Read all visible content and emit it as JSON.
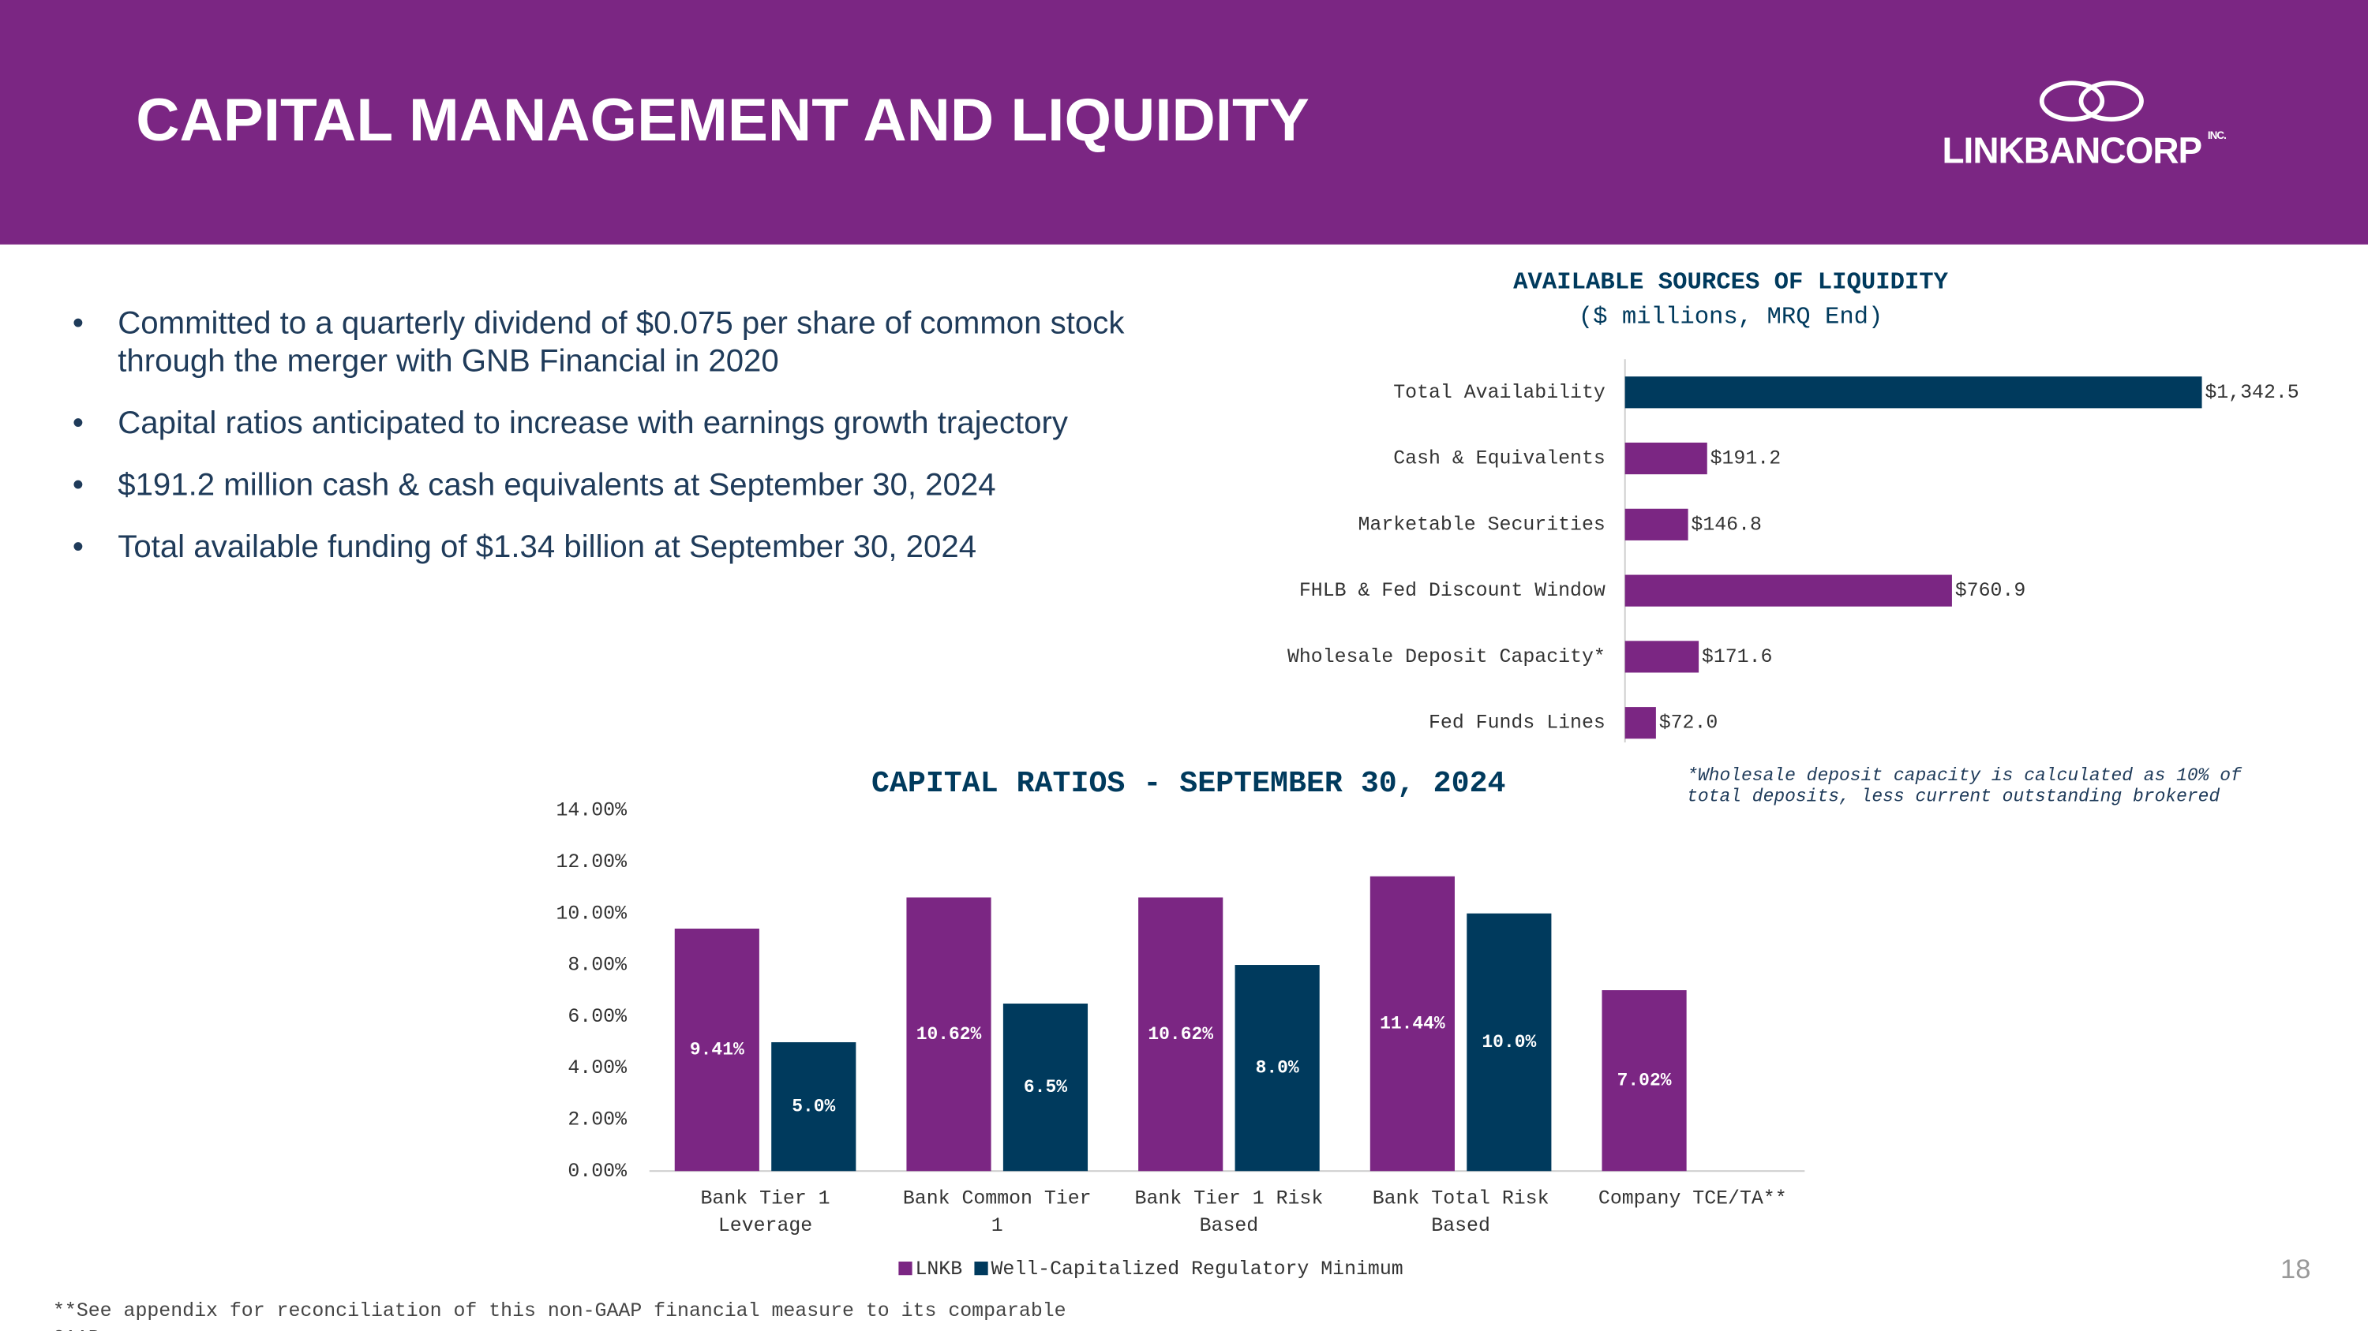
{
  "header": {
    "title": "CAPITAL MANAGEMENT AND LIQUIDITY",
    "logo": "LINKBANCORP",
    "logo_suffix": "INC."
  },
  "bullets": [
    "Committed to a quarterly dividend of $0.075 per share of common stock through the merger with GNB Financial in 2020",
    "Capital ratios anticipated to increase with earnings growth trajectory",
    "$191.2 million cash & cash equivalents at September 30, 2024",
    "Total available funding of $1.34 billion at September 30, 2024"
  ],
  "chart_data": [
    {
      "type": "hbar",
      "title": "AVAILABLE SOURCES OF LIQUIDITY",
      "subtitle": "($ millions, MRQ End)",
      "categories": [
        "Total Availability",
        "Cash & Equivalents",
        "Marketable Securities",
        "FHLB & Fed Discount Window",
        "Wholesale Deposit Capacity*",
        "Fed Funds Lines"
      ],
      "values": [
        1342.5,
        191.2,
        146.8,
        760.9,
        171.6,
        72.0
      ],
      "value_labels": [
        "$1,342.5",
        "$191.2",
        "$146.8",
        "$760.9",
        "$171.6",
        "$72.0"
      ],
      "colors": [
        "#003a5d",
        "#7b2683",
        "#7b2683",
        "#7b2683",
        "#7b2683",
        "#7b2683"
      ],
      "note": "*Wholesale deposit capacity is calculated as 10% of total deposits, less current outstanding brokered"
    },
    {
      "type": "bar",
      "title": "CAPITAL RATIOS - SEPTEMBER 30, 2024",
      "categories": [
        "Bank Tier 1 Leverage",
        "Bank Common Tier 1",
        "Bank Tier 1 Risk Based",
        "Bank Total Risk Based",
        "Company TCE/TA**"
      ],
      "series": [
        {
          "name": "LNKB",
          "color": "#7b2683",
          "values": [
            9.41,
            10.62,
            10.62,
            11.44,
            7.02
          ],
          "value_labels": [
            "9.41%",
            "10.62%",
            "10.62%",
            "11.44%",
            "7.02%"
          ]
        },
        {
          "name": "Well-Capitalized Regulatory Minimum",
          "color": "#003a5d",
          "values": [
            5.0,
            6.5,
            8.0,
            10.0,
            null
          ],
          "value_labels": [
            "5.0%",
            "6.5%",
            "8.0%",
            "10.0%",
            null
          ]
        }
      ],
      "ylim": [
        0,
        14
      ],
      "yticks": [
        {
          "value": 0,
          "label": "0.00%"
        },
        {
          "value": 2,
          "label": "2.00%"
        },
        {
          "value": 4,
          "label": "4.00%"
        },
        {
          "value": 6,
          "label": "6.00%"
        },
        {
          "value": 8,
          "label": "8.00%"
        },
        {
          "value": 10,
          "label": "10.00%"
        },
        {
          "value": 12,
          "label": "12.00%"
        },
        {
          "value": 14,
          "label": "14.00%"
        }
      ],
      "legend": "bottom"
    }
  ],
  "footnote": "**See appendix for reconciliation of this non-GAAP financial measure to its comparable GAAP measure",
  "page_number": "18"
}
